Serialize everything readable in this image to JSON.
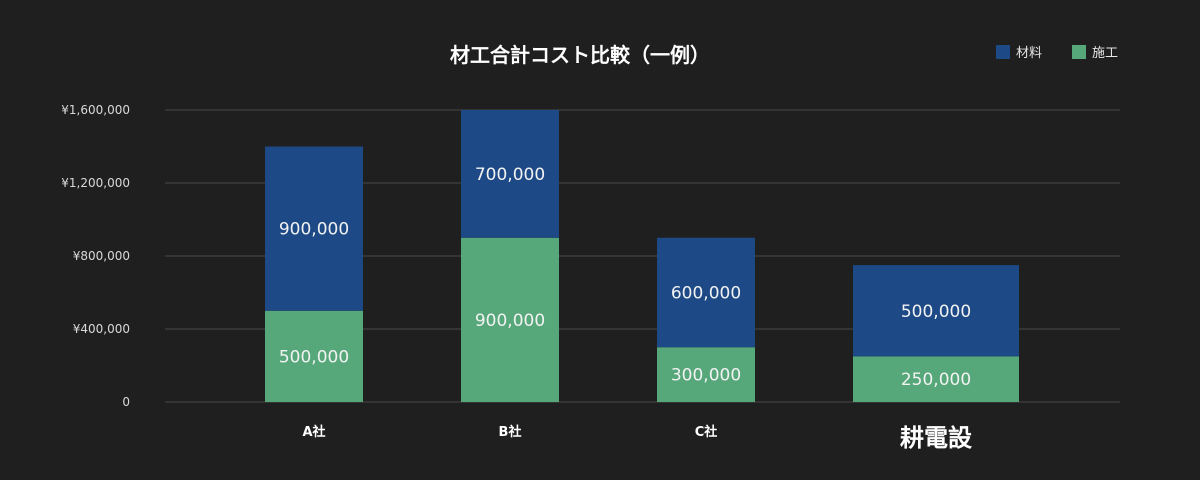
{
  "chart_data": {
    "type": "bar",
    "stacked": true,
    "title": "材工合計コスト比較（一例）",
    "categories": [
      "A社",
      "B社",
      "C社",
      "耕電設"
    ],
    "emphasized_category": "耕電設",
    "series": [
      {
        "name": "施工",
        "color": "#56a87a",
        "values": [
          500000,
          900000,
          300000,
          250000
        ],
        "labels": [
          "500,000",
          "900,000",
          "300,000",
          "250,000"
        ]
      },
      {
        "name": "材料",
        "color": "#1d4a86",
        "values": [
          900000,
          700000,
          600000,
          500000
        ],
        "labels": [
          "900,000",
          "700,000",
          "600,000",
          "500,000"
        ]
      }
    ],
    "legend_order": [
      "材料",
      "施工"
    ],
    "legend_position": "top-right",
    "ylim": [
      0,
      1600000
    ],
    "yticks": [
      0,
      400000,
      800000,
      1200000,
      1600000
    ],
    "ytick_labels": [
      "0",
      "¥400,000",
      "¥800,000",
      "¥1,200,000",
      "¥1,600,000"
    ],
    "grid": true,
    "colors": {
      "background": "#1f1f1f",
      "grid": "#4a4a4a",
      "text": "#ffffff"
    }
  }
}
